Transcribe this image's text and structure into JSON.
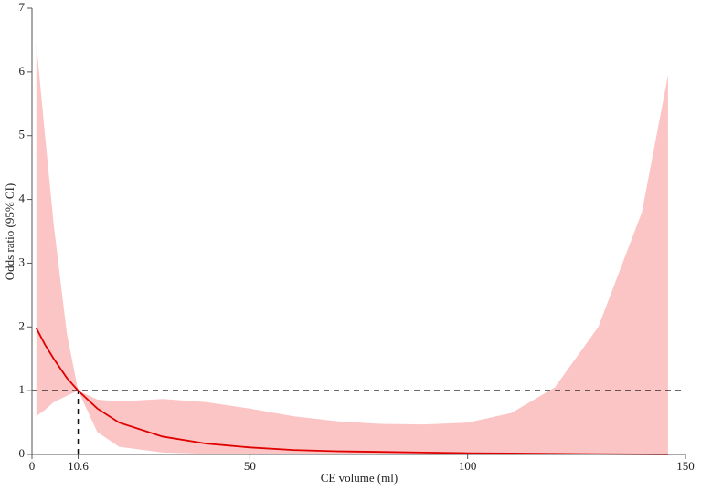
{
  "chart_data": {
    "type": "spline-ci",
    "xlabel": "CE volume (ml)",
    "ylabel": "Odds ratio (95% CI)",
    "x": [
      1,
      3,
      5,
      8,
      10.6,
      15,
      20,
      30,
      40,
      50,
      60,
      70,
      80,
      90,
      100,
      110,
      120,
      130,
      140,
      146
    ],
    "values": [
      1.98,
      1.72,
      1.5,
      1.2,
      1.0,
      0.72,
      0.5,
      0.28,
      0.17,
      0.11,
      0.07,
      0.05,
      0.04,
      0.03,
      0.02,
      0.015,
      0.01,
      0.005,
      0.002,
      0.001
    ],
    "lower": [
      0.6,
      0.7,
      0.82,
      0.92,
      1.0,
      0.35,
      0.12,
      0.03,
      0.01,
      0.005,
      0,
      0,
      0,
      0,
      0,
      0,
      0,
      0,
      0,
      0
    ],
    "upper": [
      6.45,
      5.0,
      3.6,
      1.9,
      1.0,
      0.86,
      0.83,
      0.87,
      0.82,
      0.72,
      0.6,
      0.52,
      0.48,
      0.47,
      0.5,
      0.65,
      1.05,
      2.0,
      3.8,
      5.95
    ],
    "color": "#e00000",
    "band_color": "#fcc5c5",
    "reference_y": 1,
    "cutoff_x": 10.6,
    "xlim": [
      0,
      150
    ],
    "ylim": [
      0,
      7
    ],
    "xticks": [
      0,
      10.6,
      50,
      100,
      150
    ],
    "yticks": [
      0,
      1,
      2,
      3,
      4,
      5,
      6,
      7
    ]
  }
}
